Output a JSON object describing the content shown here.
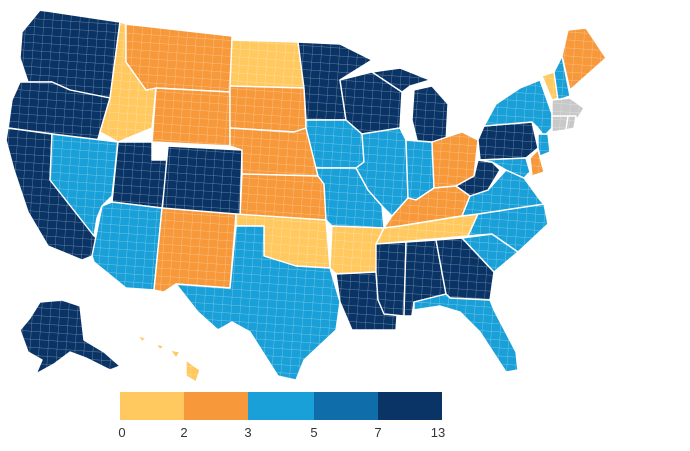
{
  "colors": {
    "bin_0_2": "#FFC960",
    "bin_2_3": "#F7993A",
    "bin_3_5": "#1AA0D8",
    "bin_5_7": "#0F6EAA",
    "bin_7_13": "#0A3466",
    "no_data": "#C8C8C8"
  },
  "legend": {
    "ticks": [
      "0",
      "2",
      "3",
      "5",
      "7",
      "13"
    ],
    "bins": [
      "bin_0_2",
      "bin_2_3",
      "bin_3_5",
      "bin_5_7",
      "bin_7_13"
    ]
  },
  "states": {
    "WA": "bin_7_13",
    "OR": "bin_7_13",
    "CA": "bin_7_13",
    "NV": "bin_3_5",
    "ID": "bin_0_2",
    "MT": "bin_2_3",
    "WY": "bin_2_3",
    "UT": "bin_7_13",
    "CO": "bin_7_13",
    "AZ": "bin_3_5",
    "NM": "bin_2_3",
    "ND": "bin_0_2",
    "SD": "bin_2_3",
    "NE": "bin_2_3",
    "KS": "bin_2_3",
    "OK": "bin_0_2",
    "TX": "bin_3_5",
    "MN": "bin_7_13",
    "IA": "bin_3_5",
    "MO": "bin_3_5",
    "AR": "bin_0_2",
    "LA": "bin_7_13",
    "WI": "bin_7_13",
    "IL": "bin_3_5",
    "MI": "bin_7_13",
    "IN": "bin_3_5",
    "OH": "bin_2_3",
    "KY": "bin_2_3",
    "TN": "bin_0_2",
    "MS": "bin_7_13",
    "AL": "bin_7_13",
    "GA": "bin_7_13",
    "FL": "bin_3_5",
    "SC": "bin_3_5",
    "NC": "bin_3_5",
    "VA": "bin_3_5",
    "WV": "bin_7_13",
    "PA": "bin_7_13",
    "NY": "bin_3_5",
    "VT": "bin_0_2",
    "NH": "bin_3_5",
    "ME": "bin_2_3",
    "MA": "no_data",
    "CT": "no_data",
    "RI": "no_data",
    "NJ": "bin_3_5",
    "DE": "bin_2_3",
    "MD": "bin_3_5",
    "AK": "bin_7_13",
    "HI": "bin_0_2"
  }
}
